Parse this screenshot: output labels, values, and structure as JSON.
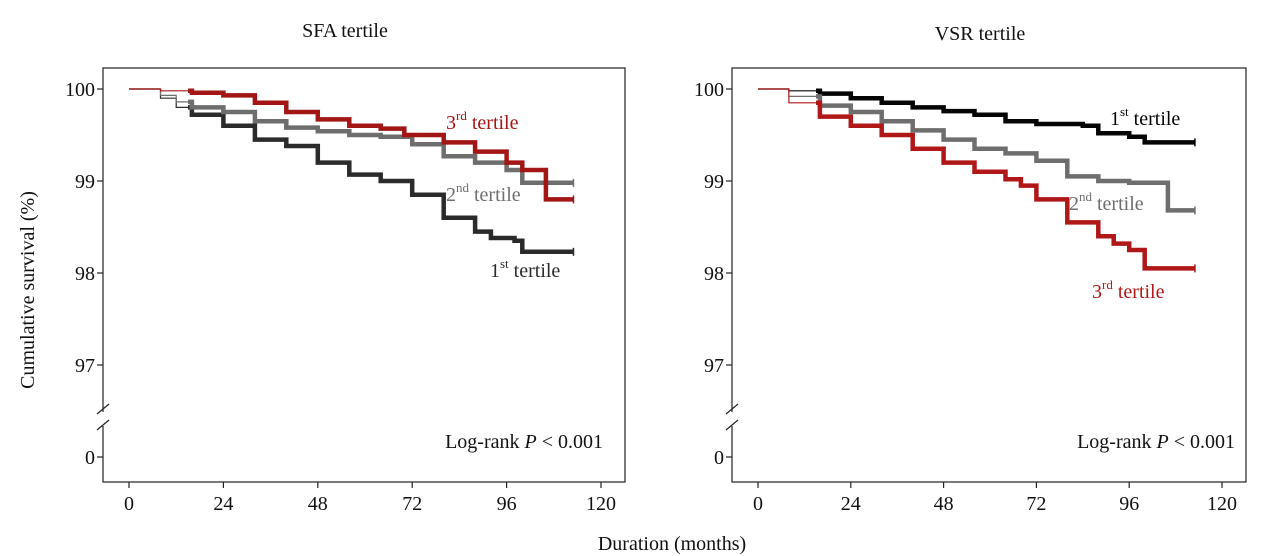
{
  "figure": {
    "ylabel": "Cumulative survival (%)",
    "xlabel": "Duration (months)"
  },
  "chart_data": [
    {
      "type": "line",
      "subtype": "kaplan-meier",
      "title": "SFA tertile",
      "xlabel": "Duration (months)",
      "ylabel": "Cumulative survival (%)",
      "xlim": [
        0,
        120
      ],
      "x_ticks": [
        0,
        24,
        48,
        72,
        96,
        120
      ],
      "y_ticks": [
        100,
        99,
        98,
        97,
        0
      ],
      "ylim_upper": [
        96.6,
        100.2
      ],
      "y_axis_break": true,
      "annotation": {
        "prefix": "Log-rank ",
        "italic": "P",
        "suffix": " < 0.001"
      },
      "series": [
        {
          "name": "1st tertile",
          "ordinal": "1",
          "sup": "st",
          "rest": " tertile",
          "color": "#2b2b2b",
          "points": [
            [
              0,
              100
            ],
            [
              8,
              99.9
            ],
            [
              12,
              99.8
            ],
            [
              16,
              99.72
            ],
            [
              24,
              99.6
            ],
            [
              32,
              99.45
            ],
            [
              40,
              99.38
            ],
            [
              48,
              99.2
            ],
            [
              56,
              99.07
            ],
            [
              64,
              99.0
            ],
            [
              72,
              98.85
            ],
            [
              80,
              98.6
            ],
            [
              88,
              98.45
            ],
            [
              92,
              98.38
            ],
            [
              98,
              98.35
            ],
            [
              100,
              98.23
            ],
            [
              113,
              98.23
            ]
          ]
        },
        {
          "name": "2nd tertile",
          "ordinal": "2",
          "sup": "nd",
          "rest": " tertile",
          "color": "#6e6e6e",
          "points": [
            [
              0,
              100
            ],
            [
              8,
              99.93
            ],
            [
              12,
              99.86
            ],
            [
              16,
              99.8
            ],
            [
              24,
              99.75
            ],
            [
              32,
              99.65
            ],
            [
              40,
              99.58
            ],
            [
              48,
              99.54
            ],
            [
              56,
              99.5
            ],
            [
              64,
              99.48
            ],
            [
              72,
              99.4
            ],
            [
              80,
              99.27
            ],
            [
              88,
              99.2
            ],
            [
              96,
              99.12
            ],
            [
              100,
              98.98
            ],
            [
              113,
              98.98
            ]
          ]
        },
        {
          "name": "3rd tertile",
          "ordinal": "3",
          "sup": "rd",
          "rest": " tertile",
          "color": "#a31616",
          "points": [
            [
              0,
              100
            ],
            [
              8,
              99.98
            ],
            [
              16,
              99.96
            ],
            [
              24,
              99.93
            ],
            [
              32,
              99.85
            ],
            [
              40,
              99.75
            ],
            [
              48,
              99.67
            ],
            [
              56,
              99.6
            ],
            [
              64,
              99.57
            ],
            [
              70,
              99.5
            ],
            [
              80,
              99.42
            ],
            [
              88,
              99.32
            ],
            [
              96,
              99.2
            ],
            [
              100,
              99.12
            ],
            [
              106,
              99.12
            ],
            [
              106,
              98.8
            ],
            [
              113,
              98.8
            ]
          ]
        }
      ]
    },
    {
      "type": "line",
      "subtype": "kaplan-meier",
      "title": "VSR tertile",
      "xlabel": "Duration (months)",
      "ylabel": "Cumulative survival (%)",
      "xlim": [
        0,
        120
      ],
      "x_ticks": [
        0,
        24,
        48,
        72,
        96,
        120
      ],
      "y_ticks": [
        100,
        99,
        98,
        97,
        0
      ],
      "ylim_upper": [
        96.6,
        100.2
      ],
      "y_axis_break": true,
      "annotation": {
        "prefix": "Log-rank ",
        "italic": "P",
        "suffix": " < 0.001"
      },
      "series": [
        {
          "name": "1st tertile",
          "ordinal": "1",
          "sup": "st",
          "rest": " tertile",
          "color": "#050505",
          "points": [
            [
              0,
              100
            ],
            [
              8,
              99.98
            ],
            [
              16,
              99.95
            ],
            [
              24,
              99.9
            ],
            [
              32,
              99.85
            ],
            [
              40,
              99.8
            ],
            [
              48,
              99.76
            ],
            [
              56,
              99.72
            ],
            [
              64,
              99.65
            ],
            [
              72,
              99.62
            ],
            [
              84,
              99.6
            ],
            [
              88,
              99.52
            ],
            [
              96,
              99.48
            ],
            [
              100,
              99.42
            ],
            [
              113,
              99.42
            ]
          ]
        },
        {
          "name": "2nd tertile",
          "ordinal": "2",
          "sup": "nd",
          "rest": " tertile",
          "color": "#6e6e6e",
          "points": [
            [
              0,
              100
            ],
            [
              8,
              99.92
            ],
            [
              16,
              99.82
            ],
            [
              24,
              99.75
            ],
            [
              32,
              99.65
            ],
            [
              40,
              99.55
            ],
            [
              48,
              99.45
            ],
            [
              56,
              99.35
            ],
            [
              64,
              99.3
            ],
            [
              72,
              99.22
            ],
            [
              80,
              99.05
            ],
            [
              88,
              99.0
            ],
            [
              96,
              98.98
            ],
            [
              106,
              98.98
            ],
            [
              106,
              98.68
            ],
            [
              113,
              98.68
            ]
          ]
        },
        {
          "name": "3rd tertile",
          "ordinal": "3",
          "sup": "rd",
          "rest": " tertile",
          "color": "#b01818",
          "points": [
            [
              0,
              100
            ],
            [
              8,
              99.85
            ],
            [
              16,
              99.7
            ],
            [
              24,
              99.6
            ],
            [
              32,
              99.5
            ],
            [
              40,
              99.35
            ],
            [
              48,
              99.2
            ],
            [
              56,
              99.1
            ],
            [
              64,
              99.02
            ],
            [
              68,
              98.95
            ],
            [
              72,
              98.8
            ],
            [
              80,
              98.55
            ],
            [
              88,
              98.4
            ],
            [
              92,
              98.32
            ],
            [
              96,
              98.25
            ],
            [
              100,
              98.05
            ],
            [
              113,
              98.05
            ]
          ]
        }
      ]
    }
  ]
}
